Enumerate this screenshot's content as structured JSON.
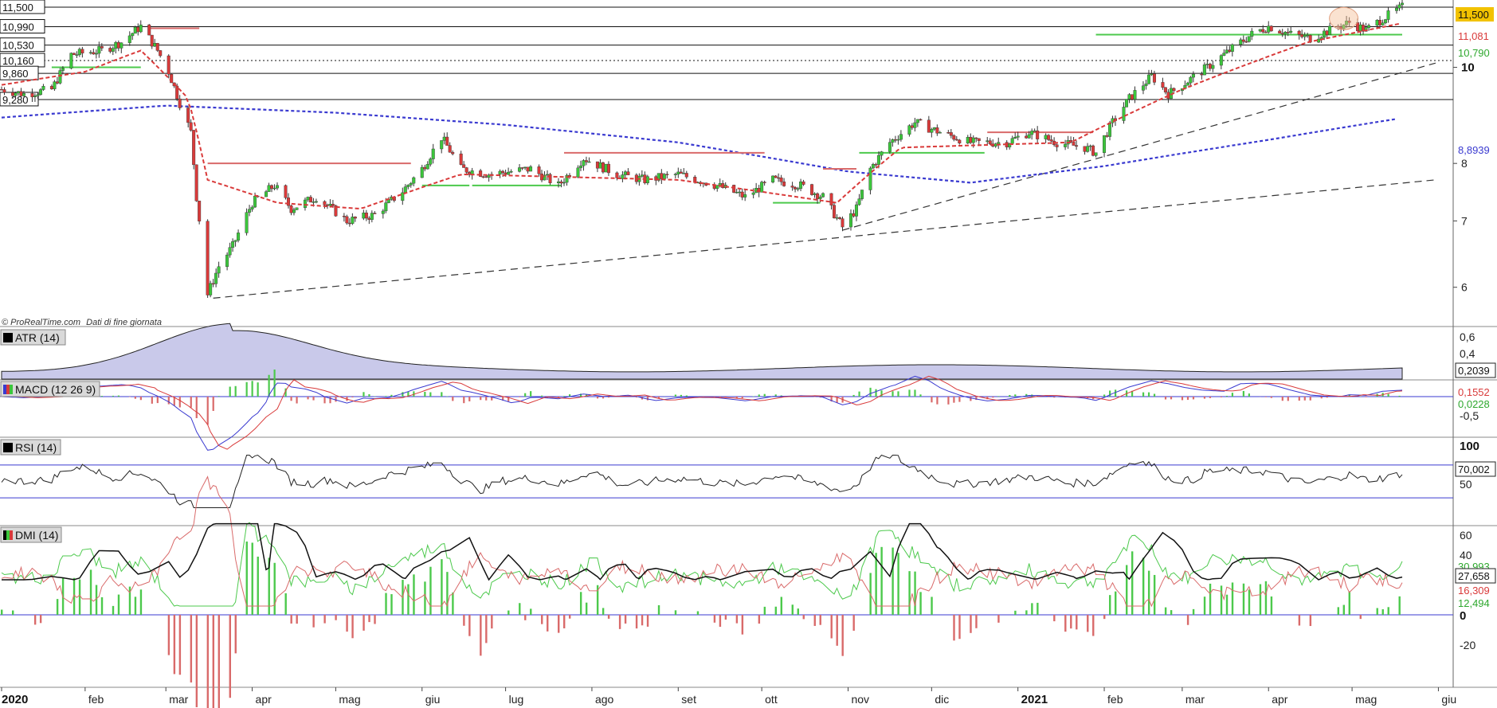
{
  "copyright": "© ProRealTime.com",
  "copyright_note": "Dati di fine giornata",
  "colors": {
    "up": "#3cc63c",
    "down": "#d93a3a",
    "sar_red": "#d96a6a",
    "sar_green": "#4cc94c",
    "ma_blue": "#3a3ad0",
    "ema_red": "#d93a3a",
    "atr_fill": "#c9c9ea",
    "hist_pos": "#4cc94c",
    "hist_neg": "#d96a6a"
  },
  "price_tags": {
    "last": "11,500",
    "red": "11,081",
    "green": "10,790",
    "blue": "8,8939"
  },
  "panels": {
    "atr": {
      "label": "ATR (14)",
      "value": "0,2039",
      "ticks": [
        "0,6",
        "0,4"
      ]
    },
    "macd": {
      "label": "MACD (12 26 9)",
      "value_red": "0,1552",
      "value_green": "0,0228",
      "ticks": [
        "-0,5"
      ]
    },
    "rsi": {
      "label": "RSI (14)",
      "value": "70,002",
      "ticks": [
        "100",
        "50"
      ]
    },
    "dmi": {
      "label": "DMI (14)",
      "values": [
        "30,993",
        "27,658",
        "16,309",
        "12,494"
      ],
      "ticks": [
        "60",
        "40",
        "0",
        "-20"
      ]
    }
  },
  "chart_data": {
    "type": "candlestick",
    "title": "",
    "x_labels": [
      "2020",
      "feb",
      "mar",
      "apr",
      "mag",
      "giu",
      "lug",
      "ago",
      "set",
      "ott",
      "nov",
      "dic",
      "2021",
      "feb",
      "mar",
      "apr",
      "mag",
      "giu"
    ],
    "x_labels_bold": [
      "2020",
      "2021"
    ],
    "y_ticks": [
      "10",
      "8",
      "7",
      "6"
    ],
    "y_ticks_bold": [
      "10"
    ],
    "y_range": [
      5.6,
      11.65
    ],
    "levels": [
      {
        "value": 11.5,
        "label": "11,500",
        "style": "solid"
      },
      {
        "value": 10.99,
        "label": "10,990",
        "style": "solid"
      },
      {
        "value": 10.53,
        "label": "10,530",
        "style": "solid"
      },
      {
        "value": 10.16,
        "label": "10,160",
        "style": "dotted"
      },
      {
        "value": 9.86,
        "label": "9,860",
        "style": "solid"
      },
      {
        "value": 9.28,
        "label": "9,280",
        "style": "solid"
      }
    ],
    "price_path": [
      [
        "2020-01-02",
        9.5
      ],
      [
        "2020-01-10",
        9.4
      ],
      [
        "2020-01-20",
        9.5
      ],
      [
        "2020-01-27",
        10.3
      ],
      [
        "2020-02-07",
        10.4
      ],
      [
        "2020-02-14",
        10.6
      ],
      [
        "2020-02-21",
        11.0
      ],
      [
        "2020-02-27",
        10.4
      ],
      [
        "2020-03-02",
        9.9
      ],
      [
        "2020-03-06",
        9.2
      ],
      [
        "2020-03-10",
        8.6
      ],
      [
        "2020-03-12",
        7.4
      ],
      [
        "2020-03-16",
        5.9
      ],
      [
        "2020-03-20",
        6.3
      ],
      [
        "2020-03-25",
        6.6
      ],
      [
        "2020-04-01",
        7.3
      ],
      [
        "2020-04-09",
        7.6
      ],
      [
        "2020-04-15",
        7.2
      ],
      [
        "2020-04-24",
        7.4
      ],
      [
        "2020-05-05",
        7.0
      ],
      [
        "2020-05-15",
        7.1
      ],
      [
        "2020-05-25",
        7.5
      ],
      [
        "2020-06-01",
        7.9
      ],
      [
        "2020-06-08",
        8.5
      ],
      [
        "2020-06-15",
        7.9
      ],
      [
        "2020-06-25",
        7.8
      ],
      [
        "2020-07-10",
        7.9
      ],
      [
        "2020-07-20",
        7.6
      ],
      [
        "2020-07-29",
        8.1
      ],
      [
        "2020-08-10",
        7.8
      ],
      [
        "2020-08-20",
        7.7
      ],
      [
        "2020-09-01",
        7.8
      ],
      [
        "2020-09-15",
        7.6
      ],
      [
        "2020-09-25",
        7.4
      ],
      [
        "2020-10-05",
        7.7
      ],
      [
        "2020-10-15",
        7.6
      ],
      [
        "2020-10-23",
        7.4
      ],
      [
        "2020-10-30",
        6.9
      ],
      [
        "2020-11-04",
        7.2
      ],
      [
        "2020-11-09",
        7.9
      ],
      [
        "2020-11-16",
        8.4
      ],
      [
        "2020-11-25",
        8.8
      ],
      [
        "2020-12-04",
        8.6
      ],
      [
        "2020-12-15",
        8.4
      ],
      [
        "2020-12-28",
        8.4
      ],
      [
        "2021-01-05",
        8.6
      ],
      [
        "2021-01-15",
        8.4
      ],
      [
        "2021-01-25",
        8.3
      ],
      [
        "2021-01-29",
        8.2
      ],
      [
        "2021-02-04",
        8.8
      ],
      [
        "2021-02-10",
        9.3
      ],
      [
        "2021-02-18",
        9.8
      ],
      [
        "2021-02-24",
        9.4
      ],
      [
        "2021-03-01",
        9.6
      ],
      [
        "2021-03-10",
        10.0
      ],
      [
        "2021-03-18",
        10.4
      ],
      [
        "2021-03-26",
        10.8
      ],
      [
        "2021-04-01",
        11.0
      ],
      [
        "2021-04-09",
        10.8
      ],
      [
        "2021-04-16",
        10.7
      ],
      [
        "2021-04-23",
        10.9
      ],
      [
        "2021-04-30",
        11.1
      ],
      [
        "2021-05-06",
        10.9
      ],
      [
        "2021-05-12",
        11.2
      ],
      [
        "2021-05-19",
        11.5
      ]
    ],
    "sar": [
      {
        "from": "2020-01-20",
        "to": "2020-02-21",
        "value": 10.0,
        "color": "green"
      },
      {
        "from": "2020-02-24",
        "to": "2020-03-13",
        "value": 10.95,
        "color": "red"
      },
      {
        "from": "2020-03-16",
        "to": "2020-05-28",
        "value": 8.0,
        "color": "red"
      },
      {
        "from": "2020-06-01",
        "to": "2020-06-18",
        "value": 7.6,
        "color": "green"
      },
      {
        "from": "2020-06-19",
        "to": "2020-07-21",
        "value": 7.6,
        "color": "green"
      },
      {
        "from": "2020-07-22",
        "to": "2020-10-02",
        "value": 8.2,
        "color": "red"
      },
      {
        "from": "2020-10-05",
        "to": "2020-10-22",
        "value": 7.3,
        "color": "green"
      },
      {
        "from": "2020-10-23",
        "to": "2020-11-04",
        "value": 7.9,
        "color": "red"
      },
      {
        "from": "2020-11-05",
        "to": "2020-12-20",
        "value": 8.2,
        "color": "green"
      },
      {
        "from": "2020-12-21",
        "to": "2021-01-28",
        "value": 8.6,
        "color": "red"
      },
      {
        "from": "2021-01-29",
        "to": "2021-05-19",
        "value": 10.79,
        "color": "green"
      }
    ],
    "ma_long_path": [
      [
        "2020-01-02",
        8.9
      ],
      [
        "2020-03-01",
        9.15
      ],
      [
        "2020-05-01",
        9.0
      ],
      [
        "2020-07-01",
        8.75
      ],
      [
        "2020-09-01",
        8.4
      ],
      [
        "2020-11-01",
        7.85
      ],
      [
        "2020-12-15",
        7.65
      ],
      [
        "2021-02-01",
        7.95
      ],
      [
        "2021-04-01",
        8.45
      ],
      [
        "2021-05-19",
        8.89
      ]
    ],
    "ema_path": [
      [
        "2020-01-02",
        9.6
      ],
      [
        "2020-02-01",
        9.9
      ],
      [
        "2020-02-21",
        10.4
      ],
      [
        "2020-03-09",
        9.3
      ],
      [
        "2020-03-16",
        7.7
      ],
      [
        "2020-04-10",
        7.3
      ],
      [
        "2020-05-10",
        7.2
      ],
      [
        "2020-06-15",
        7.8
      ],
      [
        "2020-09-01",
        7.7
      ],
      [
        "2020-10-28",
        7.3
      ],
      [
        "2020-11-20",
        8.3
      ],
      [
        "2021-01-20",
        8.4
      ],
      [
        "2021-03-01",
        9.5
      ],
      [
        "2021-04-15",
        10.6
      ],
      [
        "2021-05-19",
        11.08
      ]
    ],
    "trendlines": [
      {
        "from": [
          "2020-03-18",
          5.85
        ],
        "to": [
          "2021-05-31",
          7.7
        ]
      },
      {
        "from": [
          "2020-10-30",
          6.85
        ],
        "to": [
          "2021-05-31",
          10.1
        ]
      }
    ],
    "marker_circle": [
      "2021-04-28",
      11.2
    ]
  }
}
